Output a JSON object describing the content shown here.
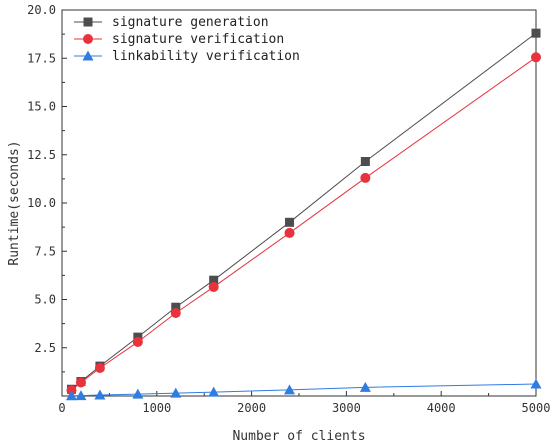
{
  "chart_data": {
    "type": "line",
    "xlabel": "Number of clients",
    "ylabel": "Runtime(seconds)",
    "xlim": [
      0,
      5000
    ],
    "ylim": [
      0,
      20.0
    ],
    "x_ticks": [
      0,
      1000,
      2000,
      3000,
      4000,
      5000
    ],
    "x_tick_labels": [
      "0",
      "1000",
      "2000",
      "3000",
      "4000",
      "5000"
    ],
    "y_ticks": [
      2.5,
      5.0,
      7.5,
      10.0,
      12.5,
      15.0,
      17.5,
      20.0
    ],
    "y_tick_labels": [
      "2.5",
      "5.0",
      "7.5",
      "10.0",
      "12.5",
      "15.0",
      "17.5",
      "20.0"
    ],
    "grid": false,
    "legend_position": "top-left",
    "x": [
      100,
      200,
      400,
      800,
      1200,
      1600,
      2400,
      3200,
      5000
    ],
    "series": [
      {
        "name": "signature generation",
        "marker": "square",
        "color": "#4d4d4d",
        "values": [
          0.35,
          0.75,
          1.55,
          3.05,
          4.6,
          6.0,
          9.0,
          12.15,
          18.8
        ]
      },
      {
        "name": "signature verification",
        "marker": "circle",
        "color": "#e8323c",
        "values": [
          0.3,
          0.7,
          1.45,
          2.8,
          4.3,
          5.65,
          8.45,
          11.3,
          17.55
        ]
      },
      {
        "name": "linkability verification",
        "marker": "triangle",
        "color": "#2f7de1",
        "values": [
          0.01,
          0.02,
          0.05,
          0.1,
          0.15,
          0.2,
          0.32,
          0.45,
          0.62
        ]
      }
    ]
  }
}
